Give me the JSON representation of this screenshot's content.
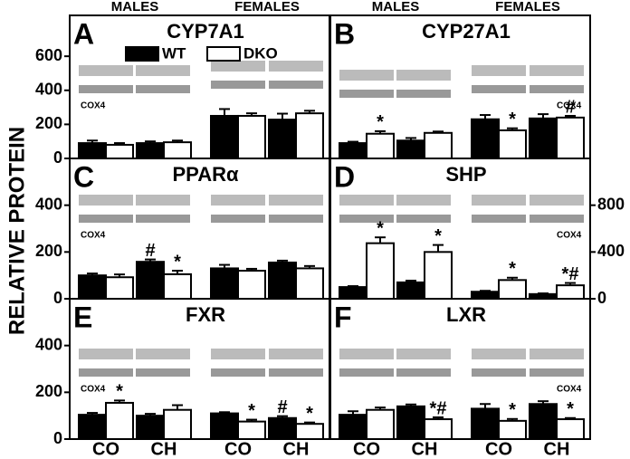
{
  "ylabel": "RELATIVE PROTEIN",
  "chart_data": [
    {
      "type": "bar",
      "letter": "A",
      "title": "CYP7A1",
      "groups": [
        "MALES",
        "FEMALES"
      ],
      "ylim": [
        0,
        840
      ],
      "yticks": [
        0,
        200,
        400,
        600
      ],
      "axis_side": "left",
      "blot_label": "COX4",
      "series": [
        {
          "name": "WT",
          "color": "#000000",
          "values": [
            90,
            90,
            250,
            228
          ],
          "errors": [
            15,
            10,
            40,
            35
          ],
          "labels": [
            null,
            null,
            null,
            null
          ]
        },
        {
          "name": "DKO",
          "color": "#ffffff",
          "values": [
            80,
            95,
            250,
            265
          ],
          "errors": [
            10,
            10,
            15,
            15
          ],
          "labels": [
            null,
            null,
            null,
            null
          ]
        }
      ]
    },
    {
      "type": "bar",
      "letter": "B",
      "title": "CYP27A1",
      "groups": [
        "MALES",
        "FEMALES"
      ],
      "ylim": [
        0,
        840
      ],
      "axis_side": "none",
      "blot_label": "COX4",
      "series": [
        {
          "color": "#000000",
          "values": [
            90,
            105,
            230,
            235
          ],
          "errors": [
            8,
            15,
            25,
            25
          ],
          "labels": [
            null,
            null,
            null,
            null
          ]
        },
        {
          "color": "#ffffff",
          "values": [
            145,
            150,
            165,
            240
          ],
          "errors": [
            15,
            8,
            12,
            10
          ],
          "labels": [
            "*",
            null,
            "*",
            "#"
          ]
        }
      ]
    },
    {
      "type": "bar",
      "letter": "C",
      "title": "PPARα",
      "ylim": [
        0,
        600
      ],
      "yticks": [
        0,
        200,
        400
      ],
      "axis_side": "left",
      "blot_label": "COX4",
      "series": [
        {
          "color": "#000000",
          "values": [
            100,
            158,
            130,
            155
          ],
          "errors": [
            8,
            10,
            15,
            8
          ],
          "labels": [
            null,
            "#",
            null,
            null
          ]
        },
        {
          "color": "#ffffff",
          "values": [
            92,
            105,
            120,
            130
          ],
          "errors": [
            12,
            15,
            8,
            10
          ],
          "labels": [
            null,
            "*",
            null,
            null
          ]
        }
      ]
    },
    {
      "type": "bar",
      "letter": "D",
      "title": "SHP",
      "ylim": [
        0,
        1200
      ],
      "yticks": [
        0,
        400,
        800
      ],
      "axis_side": "right",
      "blot_label": "COX4",
      "series": [
        {
          "color": "#000000",
          "values": [
            100,
            140,
            60,
            40
          ],
          "errors": [
            8,
            15,
            8,
            6
          ],
          "labels": [
            null,
            null,
            null,
            null
          ]
        },
        {
          "color": "#ffffff",
          "values": [
            475,
            400,
            160,
            115
          ],
          "errors": [
            50,
            60,
            20,
            20
          ],
          "labels": [
            "*",
            "*",
            "*",
            "*#"
          ]
        }
      ]
    },
    {
      "type": "bar",
      "letter": "E",
      "title": "FXR",
      "categories": [
        "CO",
        "CH",
        "CO",
        "CH"
      ],
      "ylim": [
        0,
        600
      ],
      "yticks": [
        0,
        200,
        400
      ],
      "axis_side": "left",
      "blot_label": "COX4",
      "series": [
        {
          "color": "#000000",
          "values": [
            104,
            100,
            110,
            90
          ],
          "errors": [
            8,
            8,
            5,
            8
          ],
          "labels": [
            null,
            null,
            null,
            "#"
          ]
        },
        {
          "color": "#ffffff",
          "values": [
            155,
            125,
            75,
            65
          ],
          "errors": [
            10,
            20,
            8,
            6
          ],
          "labels": [
            "*",
            null,
            "*",
            "*"
          ]
        }
      ]
    },
    {
      "type": "bar",
      "letter": "F",
      "title": "LXR",
      "categories": [
        "CO",
        "CH",
        "CO",
        "CH"
      ],
      "ylim": [
        0,
        600
      ],
      "axis_side": "none",
      "blot_label": "COX4",
      "series": [
        {
          "color": "#000000",
          "values": [
            104,
            140,
            130,
            150
          ],
          "errors": [
            15,
            8,
            20,
            12
          ],
          "labels": [
            null,
            null,
            null,
            null
          ]
        },
        {
          "color": "#ffffff",
          "values": [
            125,
            85,
            78,
            85
          ],
          "errors": [
            10,
            8,
            8,
            5
          ],
          "labels": [
            null,
            "*#",
            "*",
            "*"
          ]
        }
      ]
    }
  ]
}
